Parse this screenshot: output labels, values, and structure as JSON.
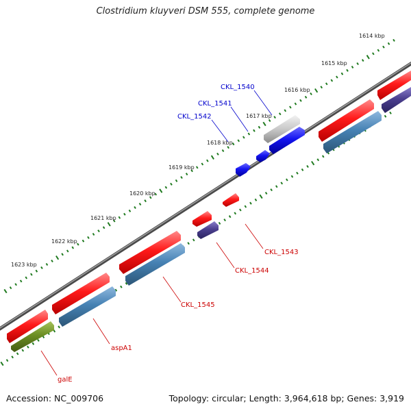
{
  "title": "Clostridium kluyveri DSM 555, complete genome",
  "accession": "Accession: NC_009706",
  "topology": "Topology: circular; Length: 3,964,618 bp; Genes: 3,919",
  "colors": {
    "backbone": "#7a7a7a",
    "tick": "#1f7a1f",
    "forward_gene": "#ff1010",
    "reverse_gene": "#4682b4",
    "rna_gene": "#1010ee",
    "pseudo_gene": "#bdbdbd",
    "dark_gene": "#4b3f8f",
    "olive_gene": "#6b8e23",
    "label_red": "#cc0000",
    "label_blue": "#0000cc"
  },
  "ruler": {
    "unit": "kbp",
    "ticks": [
      "1614 kbp",
      "1615 kbp",
      "1616 kbp",
      "1617 kbp",
      "1618 kbp",
      "1619 kbp",
      "1620 kbp",
      "1621 kbp",
      "1622 kbp",
      "1623 kbp"
    ]
  },
  "gene_labels": {
    "blue": [
      "CKL_1540",
      "CKL_1541",
      "CKL_1542"
    ],
    "red": [
      "CKL_1543",
      "CKL_1544",
      "CKL_1545",
      "aspA1",
      "galE"
    ]
  }
}
